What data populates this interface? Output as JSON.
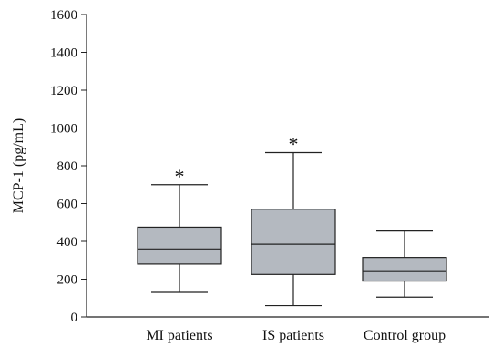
{
  "chart_data": {
    "type": "box",
    "ylabel": "MCP-1 (pg/mL)",
    "ylim": [
      0,
      1600
    ],
    "yticks": [
      0,
      200,
      400,
      600,
      800,
      1000,
      1200,
      1400,
      1600
    ],
    "grid": false,
    "box_color": "#b4b9c0",
    "categories": [
      "MI patients",
      "IS patients",
      "Control group"
    ],
    "boxes": [
      {
        "category": "MI patients",
        "min": 130,
        "q1": 280,
        "median": 360,
        "q3": 475,
        "max": 700,
        "annotation": "*"
      },
      {
        "category": "IS patients",
        "min": 60,
        "q1": 225,
        "median": 385,
        "q3": 570,
        "max": 870,
        "annotation": "*"
      },
      {
        "category": "Control group",
        "min": 105,
        "q1": 190,
        "median": 240,
        "q3": 315,
        "max": 455,
        "annotation": ""
      }
    ]
  }
}
